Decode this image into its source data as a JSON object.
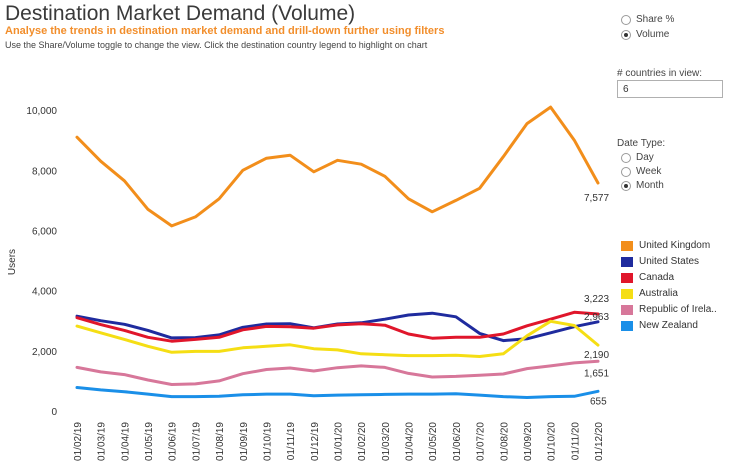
{
  "header": {
    "title": "Destination Market Demand (Volume)",
    "subtitle": "Analyse the trends in destination market demand and drill-down further using filters",
    "help": "Use the Share/Volume toggle to change the view. Click the destination country legend to highlight on chart"
  },
  "view_toggle": {
    "options": [
      {
        "label": "Share %",
        "checked": false
      },
      {
        "label": "Volume",
        "checked": true
      }
    ]
  },
  "countries_filter": {
    "label": "# countries in view:",
    "value": "6"
  },
  "date_type": {
    "label": "Date Type:",
    "options": [
      {
        "label": "Day",
        "checked": false
      },
      {
        "label": "Week",
        "checked": false
      },
      {
        "label": "Month",
        "checked": true
      }
    ]
  },
  "legend": [
    {
      "label": "United Kingdom",
      "color": "#f28e1b"
    },
    {
      "label": "United States",
      "color": "#1f2b9e"
    },
    {
      "label": "Canada",
      "color": "#e0162b"
    },
    {
      "label": "Australia",
      "color": "#f5de14"
    },
    {
      "label": "Republic of Irela..",
      "color": "#d7779a"
    },
    {
      "label": "New Zealand",
      "color": "#1a8fe8"
    }
  ],
  "chart_data": {
    "type": "line",
    "ylabel": "Users",
    "ylim": [
      0,
      10800
    ],
    "yticks": [
      0,
      2000,
      4000,
      6000,
      8000,
      10000
    ],
    "ytick_labels": [
      "0",
      "2,000",
      "4,000",
      "6,000",
      "8,000",
      "10,000"
    ],
    "x": [
      "01/02/19",
      "01/03/19",
      "01/04/19",
      "01/05/19",
      "01/06/19",
      "01/07/19",
      "01/08/19",
      "01/09/19",
      "01/10/19",
      "01/11/19",
      "01/12/19",
      "01/01/20",
      "01/02/20",
      "01/03/20",
      "01/04/20",
      "01/05/20",
      "01/06/20",
      "01/07/20",
      "01/08/20",
      "01/09/20",
      "01/10/20",
      "01/11/20",
      "01/12/20"
    ],
    "series": [
      {
        "name": "United Kingdom",
        "color": "#f28e1b",
        "end_label": "7,577",
        "values": [
          9100,
          8300,
          7650,
          6700,
          6150,
          6450,
          7050,
          8000,
          8400,
          8500,
          7950,
          8330,
          8200,
          7800,
          7050,
          6620,
          7000,
          7400,
          8450,
          9550,
          10100,
          9000,
          7577
        ]
      },
      {
        "name": "United States",
        "color": "#1f2b9e",
        "end_label": "2,963",
        "values": [
          3150,
          3000,
          2880,
          2680,
          2430,
          2440,
          2530,
          2780,
          2890,
          2900,
          2760,
          2890,
          2930,
          3050,
          3190,
          3250,
          3130,
          2580,
          2340,
          2400,
          2600,
          2800,
          2963
        ]
      },
      {
        "name": "Canada",
        "color": "#e0162b",
        "end_label": "3,223",
        "values": [
          3100,
          2870,
          2680,
          2450,
          2320,
          2380,
          2450,
          2700,
          2810,
          2800,
          2750,
          2860,
          2900,
          2850,
          2560,
          2420,
          2450,
          2450,
          2560,
          2830,
          3050,
          3280,
          3223
        ]
      },
      {
        "name": "Australia",
        "color": "#f5de14",
        "end_label": "2,190",
        "values": [
          2820,
          2600,
          2380,
          2150,
          1950,
          1980,
          1980,
          2100,
          2150,
          2200,
          2070,
          2030,
          1900,
          1870,
          1840,
          1840,
          1850,
          1810,
          1900,
          2500,
          2980,
          2840,
          2190
        ]
      },
      {
        "name": "Republic of Irela..",
        "color": "#d7779a",
        "end_label": "1,651",
        "values": [
          1450,
          1300,
          1210,
          1030,
          880,
          900,
          1000,
          1240,
          1380,
          1430,
          1330,
          1440,
          1500,
          1450,
          1250,
          1130,
          1150,
          1190,
          1230,
          1410,
          1500,
          1600,
          1651
        ]
      },
      {
        "name": "New Zealand",
        "color": "#1a8fe8",
        "end_label": "655",
        "values": [
          780,
          700,
          640,
          560,
          480,
          480,
          490,
          540,
          560,
          560,
          510,
          530,
          540,
          550,
          560,
          560,
          570,
          530,
          480,
          450,
          480,
          490,
          655
        ]
      }
    ]
  }
}
